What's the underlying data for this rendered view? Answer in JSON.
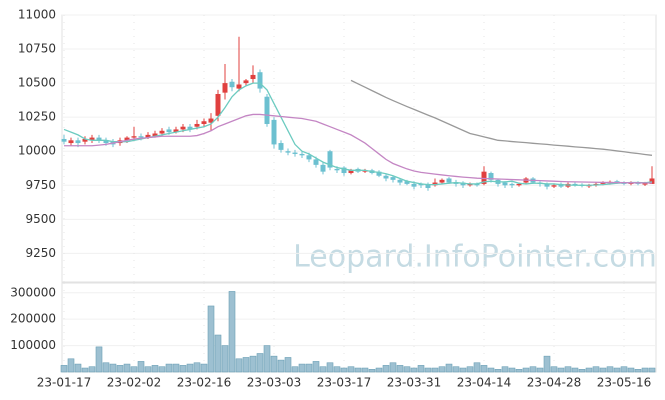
{
  "chart_data": [
    {
      "type": "candlestick",
      "categories": [
        "23-01-17",
        null,
        null,
        null,
        null,
        null,
        null,
        null,
        null,
        null,
        "23-02-02",
        null,
        null,
        null,
        null,
        null,
        null,
        null,
        null,
        null,
        "23-02-16",
        null,
        null,
        null,
        null,
        null,
        null,
        null,
        null,
        null,
        "23-03-03",
        null,
        null,
        null,
        null,
        null,
        null,
        null,
        null,
        null,
        "23-03-17",
        null,
        null,
        null,
        null,
        null,
        null,
        null,
        null,
        null,
        "23-03-31",
        null,
        null,
        null,
        null,
        null,
        null,
        null,
        null,
        null,
        "23-04-14",
        null,
        null,
        null,
        null,
        null,
        null,
        null,
        null,
        null,
        "23-04-28",
        null,
        null,
        null,
        null,
        null,
        null,
        null,
        null,
        null,
        "23-05-16",
        null,
        null,
        null,
        null
      ],
      "open": [
        10090,
        10060,
        10080,
        10070,
        10080,
        10100,
        10080,
        10070,
        10060,
        10080,
        10100,
        10110,
        10100,
        10110,
        10130,
        10160,
        10140,
        10160,
        10180,
        10180,
        10200,
        10210,
        10260,
        10430,
        10510,
        10460,
        10500,
        10530,
        10580,
        10400,
        10230,
        10060,
        10000,
        9990,
        9980,
        9970,
        9940,
        9900,
        10000,
        9870,
        9880,
        9840,
        9870,
        9850,
        9860,
        9850,
        9820,
        9810,
        9790,
        9780,
        9760,
        9760,
        9760,
        9750,
        9770,
        9800,
        9770,
        9770,
        9750,
        9760,
        9760,
        9840,
        9790,
        9770,
        9760,
        9750,
        9770,
        9800,
        9770,
        9760,
        9740,
        9760,
        9740,
        9760,
        9755,
        9745,
        9750,
        9760,
        9765,
        9780,
        9770,
        9760,
        9770,
        9755,
        9760
      ],
      "high": [
        10120,
        10100,
        10100,
        10110,
        10120,
        10120,
        10100,
        10090,
        10100,
        10110,
        10180,
        10130,
        10140,
        10150,
        10170,
        10180,
        10180,
        10200,
        10200,
        10230,
        10240,
        10280,
        10450,
        10640,
        10530,
        10840,
        10530,
        10630,
        10600,
        10420,
        10250,
        10080,
        10020,
        10010,
        10000,
        9990,
        9960,
        9920,
        10010,
        9890,
        9890,
        9870,
        9880,
        9870,
        9870,
        9860,
        9830,
        9820,
        9800,
        9790,
        9780,
        9770,
        9770,
        9800,
        9800,
        9810,
        9790,
        9780,
        9770,
        9770,
        9890,
        9850,
        9800,
        9780,
        9770,
        9770,
        9810,
        9810,
        9780,
        9770,
        9760,
        9770,
        9770,
        9770,
        9765,
        9760,
        9770,
        9780,
        9785,
        9790,
        9780,
        9780,
        9780,
        9775,
        9890
      ],
      "low": [
        10050,
        10040,
        10030,
        10050,
        10060,
        10060,
        10040,
        10030,
        10040,
        10060,
        10080,
        10080,
        10090,
        10100,
        10110,
        10120,
        10130,
        10140,
        10140,
        10160,
        10180,
        10150,
        10220,
        10380,
        10440,
        10440,
        10480,
        10500,
        10430,
        10180,
        10020,
        9990,
        9970,
        9960,
        9950,
        9920,
        9880,
        9830,
        9860,
        9840,
        9820,
        9830,
        9840,
        9840,
        9830,
        9810,
        9780,
        9770,
        9750,
        9750,
        9720,
        9730,
        9710,
        9740,
        9760,
        9760,
        9740,
        9730,
        9740,
        9740,
        9750,
        9770,
        9740,
        9730,
        9730,
        9740,
        9760,
        9760,
        9740,
        9720,
        9730,
        9730,
        9730,
        9740,
        9735,
        9730,
        9740,
        9750,
        9755,
        9760,
        9750,
        9750,
        9750,
        9745,
        9760
      ],
      "close": [
        10070,
        10080,
        10060,
        10090,
        10100,
        10080,
        10060,
        10050,
        10080,
        10100,
        10110,
        10100,
        10120,
        10130,
        10150,
        10140,
        10160,
        10180,
        10160,
        10200,
        10220,
        10240,
        10420,
        10500,
        10470,
        10490,
        10520,
        10560,
        10460,
        10200,
        10050,
        10010,
        9990,
        9980,
        9970,
        9940,
        9900,
        9850,
        9880,
        9860,
        9840,
        9860,
        9850,
        9860,
        9840,
        9820,
        9800,
        9790,
        9770,
        9760,
        9740,
        9750,
        9730,
        9770,
        9790,
        9770,
        9760,
        9750,
        9760,
        9750,
        9850,
        9790,
        9760,
        9750,
        9750,
        9760,
        9800,
        9770,
        9760,
        9740,
        9750,
        9740,
        9760,
        9750,
        9745,
        9750,
        9760,
        9770,
        9775,
        9770,
        9760,
        9770,
        9760,
        9765,
        9800
      ],
      "up_color": "#e0403f",
      "down_color": "#6cc0d0",
      "lines": [
        {
          "color": "#6ccbc0",
          "values": [
            10160,
            10140,
            10120,
            10090,
            10080,
            10080,
            10080,
            10070,
            10070,
            10070,
            10080,
            10090,
            10100,
            10110,
            10120,
            10130,
            10140,
            10150,
            10160,
            10170,
            10180,
            10200,
            10250,
            10320,
            10400,
            10450,
            10480,
            10500,
            10500,
            10450,
            10350,
            10250,
            10150,
            10050,
            10000,
            9980,
            9950,
            9920,
            9900,
            9880,
            9870,
            9860,
            9860,
            9860,
            9850,
            9845,
            9835,
            9820,
            9800,
            9780,
            9770,
            9760,
            9755,
            9755,
            9760,
            9765,
            9770,
            9765,
            9760,
            9760,
            9775,
            9780,
            9775,
            9775,
            9780,
            9765,
            9760,
            9765,
            9765,
            9760,
            9760,
            9755,
            9752,
            9750,
            9750,
            9750,
            9752,
            9755,
            9760,
            9765,
            9768,
            9770,
            9770,
            9768,
            9775
          ]
        },
        {
          "color": "#c486c4",
          "values": [
            10040,
            10040,
            10040,
            10040,
            10040,
            10045,
            10050,
            10060,
            10070,
            10080,
            10090,
            10095,
            10100,
            10105,
            10110,
            10110,
            10110,
            10110,
            10110,
            10115,
            10130,
            10150,
            10180,
            10200,
            10220,
            10240,
            10260,
            10270,
            10270,
            10265,
            10260,
            10255,
            10250,
            10245,
            10240,
            10230,
            10220,
            10200,
            10180,
            10160,
            10140,
            10120,
            10090,
            10060,
            10020,
            9980,
            9940,
            9910,
            9890,
            9870,
            9855,
            9845,
            9838,
            9832,
            9826,
            9820,
            9815,
            9810,
            9806,
            9802,
            9800,
            9798,
            9796,
            9794,
            9792,
            9790,
            9788,
            9786,
            9784,
            9782,
            9780,
            9778,
            9776,
            9775,
            9774,
            9773,
            9772,
            9771,
            9770,
            9770,
            9769,
            9768,
            9768,
            9767,
            9767
          ]
        },
        {
          "color": "#999999",
          "values": [
            null,
            null,
            null,
            null,
            null,
            null,
            null,
            null,
            null,
            null,
            null,
            null,
            null,
            null,
            null,
            null,
            null,
            null,
            null,
            null,
            null,
            null,
            null,
            null,
            null,
            null,
            null,
            null,
            null,
            null,
            null,
            null,
            null,
            null,
            null,
            null,
            null,
            null,
            null,
            null,
            null,
            10520,
            10495,
            10470,
            10445,
            10420,
            10395,
            10372,
            10350,
            10328,
            10307,
            10286,
            10265,
            10245,
            10222,
            10199,
            10176,
            10153,
            10130,
            10118,
            10105,
            10093,
            10080,
            10076,
            10071,
            10067,
            10063,
            10058,
            10054,
            10050,
            10045,
            10041,
            10037,
            10032,
            10028,
            10024,
            10019,
            10015,
            10009,
            10002,
            9996,
            9989,
            9983,
            9976,
            9970
          ]
        }
      ],
      "ylim": [
        9040,
        11000
      ],
      "yticks": [
        9250,
        9500,
        9750,
        10000,
        10250,
        10500,
        10750,
        11000
      ],
      "grid": true,
      "watermark": "Leopard.InfoPointer.com"
    },
    {
      "type": "bar",
      "color": "#9dc0d1",
      "edge_color": "#6a9fb5",
      "values": [
        25000,
        50000,
        30000,
        15000,
        20000,
        95000,
        35000,
        30000,
        25000,
        30000,
        20000,
        40000,
        20000,
        25000,
        20000,
        30000,
        30000,
        25000,
        30000,
        35000,
        30000,
        250000,
        140000,
        100000,
        305000,
        50000,
        55000,
        60000,
        70000,
        100000,
        60000,
        45000,
        55000,
        20000,
        30000,
        30000,
        40000,
        20000,
        35000,
        20000,
        15000,
        20000,
        15000,
        15000,
        10000,
        15000,
        25000,
        35000,
        25000,
        20000,
        15000,
        25000,
        15000,
        15000,
        20000,
        30000,
        20000,
        15000,
        20000,
        35000,
        25000,
        15000,
        10000,
        20000,
        15000,
        10000,
        15000,
        20000,
        15000,
        60000,
        20000,
        15000,
        20000,
        15000,
        10000,
        15000,
        20000,
        15000,
        20000,
        15000,
        20000,
        15000,
        10000,
        15000,
        15000
      ],
      "ylim": [
        0,
        337000
      ],
      "yticks": [
        100000,
        200000,
        300000
      ],
      "grid": true
    }
  ]
}
